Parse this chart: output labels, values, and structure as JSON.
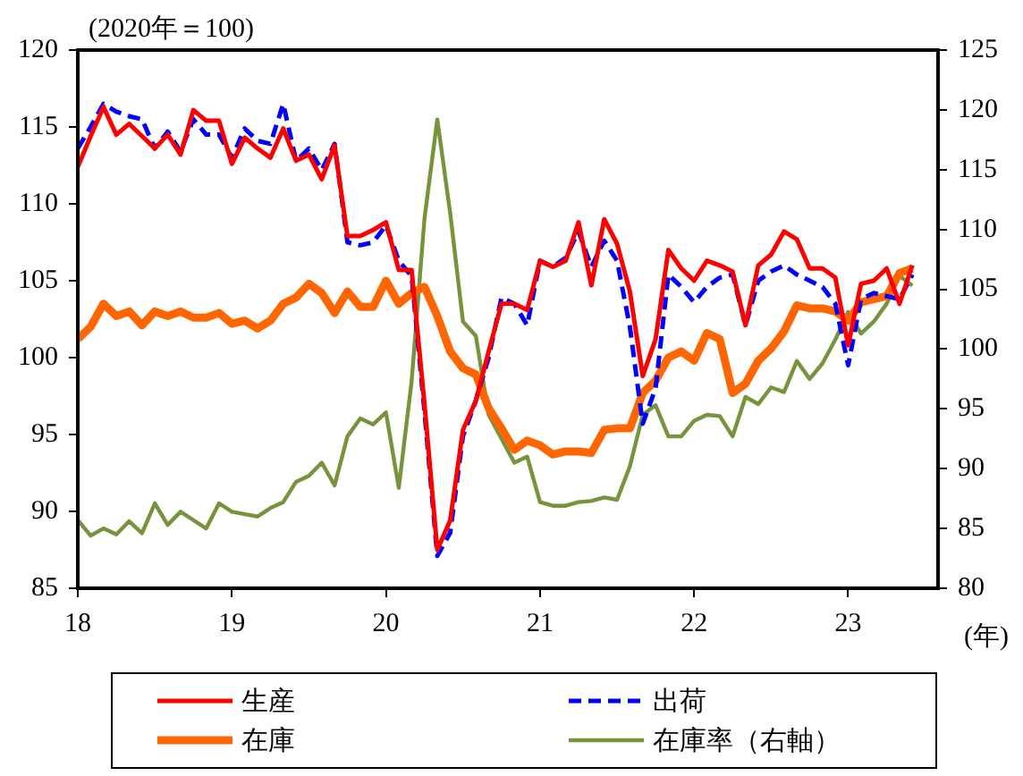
{
  "chart_data": {
    "type": "line",
    "ylabel": "(2020年＝100)",
    "xlabel": "(年)",
    "x": [
      "2018-01",
      "2018-02",
      "2018-03",
      "2018-04",
      "2018-05",
      "2018-06",
      "2018-07",
      "2018-08",
      "2018-09",
      "2018-10",
      "2018-11",
      "2018-12",
      "2019-01",
      "2019-02",
      "2019-03",
      "2019-04",
      "2019-05",
      "2019-06",
      "2019-07",
      "2019-08",
      "2019-09",
      "2019-10",
      "2019-11",
      "2019-12",
      "2020-01",
      "2020-02",
      "2020-03",
      "2020-04",
      "2020-05",
      "2020-06",
      "2020-07",
      "2020-08",
      "2020-09",
      "2020-10",
      "2020-11",
      "2020-12",
      "2021-01",
      "2021-02",
      "2021-03",
      "2021-04",
      "2021-05",
      "2021-06",
      "2021-07",
      "2021-08",
      "2021-09",
      "2021-10",
      "2021-11",
      "2021-12",
      "2022-01",
      "2022-02",
      "2022-03",
      "2022-04",
      "2022-05",
      "2022-06",
      "2022-07",
      "2022-08",
      "2022-09",
      "2022-10",
      "2022-11",
      "2022-12",
      "2023-01",
      "2023-02",
      "2023-03",
      "2023-04",
      "2023-05",
      "2023-06"
    ],
    "series": [
      {
        "name": "生産",
        "color": "#ff0000",
        "line_style": "solid",
        "values": [
          112.4,
          114.4,
          116.3,
          114.5,
          115.2,
          114.4,
          113.6,
          114.5,
          113.2,
          116.1,
          115.4,
          115.4,
          112.6,
          114.3,
          113.6,
          113.0,
          114.9,
          112.8,
          113.2,
          111.6,
          113.8,
          107.9,
          107.9,
          108.3,
          108.8,
          105.7,
          105.7,
          97.0,
          87.5,
          89.4,
          95.3,
          97.2,
          100.4,
          103.5,
          103.5,
          103.1,
          106.3,
          105.9,
          106.3,
          108.8,
          104.7,
          109.0,
          107.4,
          104.3,
          98.8,
          101.2,
          107.0,
          105.8,
          105.0,
          106.3,
          106.0,
          105.6,
          102.1,
          106.0,
          106.7,
          108.2,
          107.7,
          105.8,
          105.8,
          105.2,
          100.8,
          104.8,
          105.0,
          105.8,
          103.5,
          106.0
        ]
      },
      {
        "name": "出荷",
        "color": "#0000ff",
        "line_style": "dashed",
        "values": [
          113.6,
          115.0,
          116.5,
          116.0,
          115.7,
          115.5,
          113.6,
          114.7,
          113.4,
          115.5,
          114.5,
          114.5,
          113.0,
          114.9,
          114.1,
          113.9,
          116.5,
          112.8,
          113.6,
          112.2,
          113.9,
          107.5,
          107.3,
          107.5,
          108.6,
          106.3,
          105.3,
          96.5,
          87.1,
          88.6,
          94.9,
          97.2,
          100.0,
          103.9,
          103.5,
          102.1,
          106.3,
          105.9,
          106.5,
          108.2,
          105.9,
          107.6,
          106.3,
          102.0,
          95.7,
          98.0,
          105.4,
          104.6,
          103.6,
          104.6,
          105.2,
          105.4,
          102.1,
          105.0,
          105.6,
          106.0,
          105.4,
          105.0,
          104.6,
          103.5,
          99.5,
          103.8,
          104.2,
          104.0,
          103.8,
          105.4
        ]
      },
      {
        "name": "在庫",
        "color": "#ff6600",
        "line_style": "solid",
        "values": [
          101.2,
          102.0,
          103.5,
          102.7,
          103.0,
          102.1,
          103.0,
          102.7,
          103.0,
          102.6,
          102.6,
          102.9,
          102.2,
          102.4,
          101.9,
          102.4,
          103.5,
          103.9,
          104.8,
          104.2,
          102.9,
          104.3,
          103.3,
          103.3,
          105.0,
          103.5,
          104.2,
          104.6,
          102.7,
          100.4,
          99.3,
          98.9,
          96.7,
          95.4,
          94.0,
          94.6,
          94.3,
          93.7,
          93.9,
          93.9,
          93.8,
          95.3,
          95.4,
          95.4,
          97.7,
          98.5,
          100.0,
          100.4,
          99.8,
          101.6,
          101.2,
          97.7,
          98.3,
          99.8,
          100.6,
          101.7,
          103.4,
          103.2,
          103.2,
          103.0,
          102.4,
          103.6,
          103.8,
          104.0,
          105.5,
          105.8
        ]
      },
      {
        "name": "在庫率（右軸）",
        "color": "#77933c",
        "line_style": "solid",
        "axis": "y2",
        "values": [
          85.7,
          84.4,
          85.0,
          84.5,
          85.6,
          84.6,
          87.1,
          85.3,
          86.4,
          85.7,
          85.0,
          87.1,
          86.4,
          86.2,
          86.0,
          86.7,
          87.2,
          88.9,
          89.4,
          90.5,
          88.6,
          92.7,
          94.2,
          93.7,
          94.7,
          88.4,
          97.3,
          110.9,
          119.2,
          111.4,
          102.3,
          101.1,
          94.5,
          92.5,
          90.5,
          91.0,
          87.2,
          86.9,
          86.9,
          87.2,
          87.3,
          87.6,
          87.4,
          90.2,
          94.5,
          95.3,
          92.7,
          92.7,
          94.0,
          94.5,
          94.4,
          92.7,
          96.0,
          95.4,
          96.8,
          96.4,
          99.0,
          97.5,
          98.8,
          100.8,
          103.1,
          101.3,
          102.3,
          103.8,
          106.1,
          105.3
        ]
      }
    ],
    "xlim": [
      "2018-01",
      "2023-08"
    ],
    "xticks": [
      {
        "value": "2018-01",
        "label": "18"
      },
      {
        "value": "2019-01",
        "label": "19"
      },
      {
        "value": "2020-01",
        "label": "20"
      },
      {
        "value": "2021-01",
        "label": "21"
      },
      {
        "value": "2022-01",
        "label": "22"
      },
      {
        "value": "2023-01",
        "label": "23"
      }
    ],
    "ylim": [
      85,
      120
    ],
    "yticks": [
      85,
      90,
      95,
      100,
      105,
      110,
      115,
      120
    ],
    "y2lim": [
      80,
      125
    ],
    "y2ticks": [
      80,
      85,
      90,
      95,
      100,
      105,
      110,
      115,
      120,
      125
    ],
    "grid": false,
    "legend": "bottom",
    "marker": "none"
  }
}
